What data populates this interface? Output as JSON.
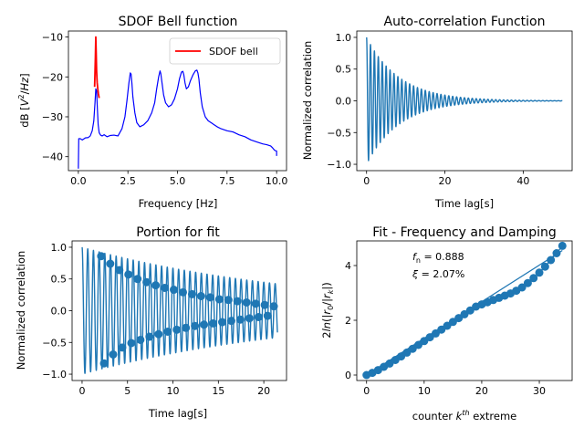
{
  "chart_data": [
    {
      "type": "line",
      "title": "SDOF Bell function",
      "xlabel": "Frequency [Hz]",
      "ylabel": "dB [V²/Hz]",
      "xlim": [
        -0.5,
        10.5
      ],
      "ylim": [
        -43.5,
        -8.5
      ],
      "xticks": [
        0.0,
        2.5,
        5.0,
        7.5,
        10.0
      ],
      "xtick_labels": [
        "0.0",
        "2.5",
        "5.0",
        "7.5",
        "10.0"
      ],
      "yticks": [
        -40,
        -30,
        -20,
        -10
      ],
      "ytick_labels": [
        "−40",
        "−30",
        "−20",
        "−10"
      ],
      "legend": {
        "position": "top-right",
        "entries": [
          "SDOF bell"
        ]
      },
      "series": [
        {
          "name": "",
          "color": "#0000ff",
          "x": [
            0.0,
            0.02,
            0.1,
            0.2,
            0.35,
            0.5,
            0.6,
            0.7,
            0.78,
            0.84,
            0.88,
            0.92,
            0.96,
            1.0,
            1.05,
            1.12,
            1.2,
            1.3,
            1.45,
            1.6,
            1.8,
            2.0,
            2.2,
            2.35,
            2.45,
            2.55,
            2.62,
            2.66,
            2.7,
            2.75,
            2.85,
            2.95,
            3.1,
            3.3,
            3.5,
            3.7,
            3.85,
            3.95,
            4.05,
            4.12,
            4.16,
            4.22,
            4.3,
            4.4,
            4.55,
            4.7,
            4.85,
            5.0,
            5.1,
            5.2,
            5.27,
            5.32,
            5.38,
            5.45,
            5.55,
            5.65,
            5.78,
            5.9,
            5.98,
            6.03,
            6.08,
            6.15,
            6.25,
            6.4,
            6.55,
            6.7,
            6.85,
            7.0,
            7.2,
            7.5,
            7.8,
            8.1,
            8.4,
            8.7,
            9.0,
            9.3,
            9.5,
            9.7,
            9.8,
            9.9,
            9.95,
            10.0,
            10.0
          ],
          "y": [
            -43.0,
            -35.5,
            -35.5,
            -35.8,
            -35.3,
            -35.2,
            -34.8,
            -33.5,
            -31.0,
            -26.5,
            -23.0,
            -23.5,
            -28.0,
            -32.0,
            -34.0,
            -34.6,
            -34.8,
            -34.5,
            -35.0,
            -34.7,
            -34.6,
            -34.8,
            -33.0,
            -30.0,
            -26.0,
            -21.5,
            -19.0,
            -19.3,
            -21.5,
            -25.0,
            -29.0,
            -31.5,
            -32.5,
            -32.0,
            -31.0,
            -29.0,
            -26.5,
            -23.0,
            -20.0,
            -18.5,
            -19.2,
            -21.5,
            -24.5,
            -26.5,
            -27.5,
            -27.0,
            -25.5,
            -23.0,
            -20.5,
            -18.8,
            -18.6,
            -19.5,
            -21.5,
            -23.0,
            -22.5,
            -21.0,
            -19.5,
            -18.5,
            -18.3,
            -19.0,
            -20.5,
            -24.0,
            -27.5,
            -30.0,
            -31.0,
            -31.5,
            -32.0,
            -32.5,
            -33.0,
            -33.5,
            -33.8,
            -34.5,
            -35.0,
            -35.8,
            -36.3,
            -36.8,
            -37.0,
            -37.3,
            -37.8,
            -38.4,
            -38.5,
            -38.6,
            -39.8
          ]
        },
        {
          "name": "SDOF bell",
          "color": "#ff0000",
          "x": [
            0.82,
            0.84,
            0.86,
            0.88,
            0.9,
            0.92,
            0.95,
            0.98,
            1.01,
            1.05
          ],
          "y": [
            -22.5,
            -19.0,
            -15.0,
            -10.0,
            -14.0,
            -18.5,
            -21.5,
            -23.0,
            -24.2,
            -25.3
          ]
        }
      ]
    },
    {
      "type": "line",
      "title": "Auto-correlation Function",
      "xlabel": "Time lag[s]",
      "ylabel": "Normalized correlation",
      "xlim": [
        -2.5,
        52.5
      ],
      "ylim": [
        -1.1,
        1.1
      ],
      "xticks": [
        0,
        20,
        40
      ],
      "xtick_labels": [
        "0",
        "20",
        "40"
      ],
      "yticks": [
        -1.0,
        -0.5,
        0.0,
        0.5,
        1.0
      ],
      "ytick_labels": [
        "−1.0",
        "−0.5",
        "0.0",
        "0.5",
        "1.0"
      ],
      "series": [
        {
          "name": "",
          "color": "#1f77b4",
          "function": "damped_cosine",
          "amplitude": 1.0,
          "frequency_hz": 1.0,
          "decay_rate": 0.12,
          "t_range": [
            0,
            50
          ]
        }
      ]
    },
    {
      "type": "line",
      "title": "Portion for fit",
      "xlabel": "Time lag[s]",
      "ylabel": "Normalized correlation",
      "xlim": [
        -1.1,
        22.5
      ],
      "ylim": [
        -1.1,
        1.1
      ],
      "xticks": [
        0,
        5,
        10,
        15,
        20
      ],
      "xtick_labels": [
        "0",
        "5",
        "10",
        "15",
        "20"
      ],
      "yticks": [
        -1.0,
        -0.5,
        0.0,
        0.5,
        1.0
      ],
      "ytick_labels": [
        "−1.0",
        "−0.5",
        "0.0",
        "0.5",
        "1.0"
      ],
      "series": [
        {
          "name": "",
          "color": "#1f77b4",
          "function": "damped_cosine",
          "amplitude": 1.0,
          "frequency_hz": 1.6,
          "decay_rate": 0.04,
          "t_range": [
            0,
            21.5
          ]
        }
      ],
      "extreme_points": {
        "color": "#1f77b4",
        "x": [
          2.1,
          2.42,
          3.1,
          3.42,
          4.1,
          4.42,
          5.1,
          5.42,
          6.1,
          6.42,
          7.1,
          7.42,
          8.1,
          8.42,
          9.1,
          9.42,
          10.1,
          10.42,
          11.1,
          11.42,
          12.1,
          12.42,
          13.1,
          13.42,
          14.1,
          14.42,
          15.1,
          15.42,
          16.1,
          16.42,
          17.1,
          17.42,
          18.1,
          18.42,
          19.1,
          19.42,
          20.1,
          20.42,
          21.1
        ],
        "y": [
          0.86,
          -0.83,
          0.74,
          -0.69,
          0.64,
          -0.58,
          0.57,
          -0.51,
          0.5,
          -0.46,
          0.45,
          -0.41,
          0.4,
          -0.37,
          0.36,
          -0.33,
          0.33,
          -0.3,
          0.29,
          -0.27,
          0.26,
          -0.24,
          0.23,
          -0.22,
          0.21,
          -0.2,
          0.18,
          -0.18,
          0.17,
          -0.16,
          0.15,
          -0.14,
          0.13,
          -0.12,
          0.11,
          -0.1,
          0.09,
          -0.08,
          0.07
        ]
      }
    },
    {
      "type": "scatter",
      "title": "Fit - Frequency and Damping",
      "xlabel": "counter kth extreme",
      "ylabel": "2ln(r0/|rk|)",
      "xlim": [
        -1.7,
        35.7
      ],
      "ylim": [
        -0.2,
        4.9
      ],
      "xticks": [
        0,
        10,
        20,
        30
      ],
      "xtick_labels": [
        "0",
        "10",
        "20",
        "30"
      ],
      "yticks": [
        0,
        2,
        4
      ],
      "ytick_labels": [
        "0",
        "2",
        "4"
      ],
      "annotations": [
        "fn = 0.888",
        "ξ = 2.07%"
      ],
      "points": {
        "color": "#1f77b4",
        "x": [
          0,
          1,
          2,
          3,
          4,
          5,
          6,
          7,
          8,
          9,
          10,
          11,
          12,
          13,
          14,
          15,
          16,
          17,
          18,
          19,
          20,
          21,
          22,
          23,
          24,
          25,
          26,
          27,
          28,
          29,
          30,
          31,
          32,
          33,
          34
        ],
        "y": [
          0.0,
          0.08,
          0.18,
          0.3,
          0.42,
          0.55,
          0.68,
          0.82,
          0.96,
          1.1,
          1.24,
          1.38,
          1.52,
          1.66,
          1.8,
          1.94,
          2.08,
          2.22,
          2.36,
          2.5,
          2.58,
          2.66,
          2.74,
          2.82,
          2.9,
          2.98,
          3.08,
          3.2,
          3.36,
          3.54,
          3.74,
          3.96,
          4.2,
          4.45,
          4.72
        ]
      },
      "fit_line": {
        "color": "#1f77b4",
        "x": [
          0,
          34
        ],
        "y": [
          0.0,
          4.55
        ]
      }
    }
  ]
}
